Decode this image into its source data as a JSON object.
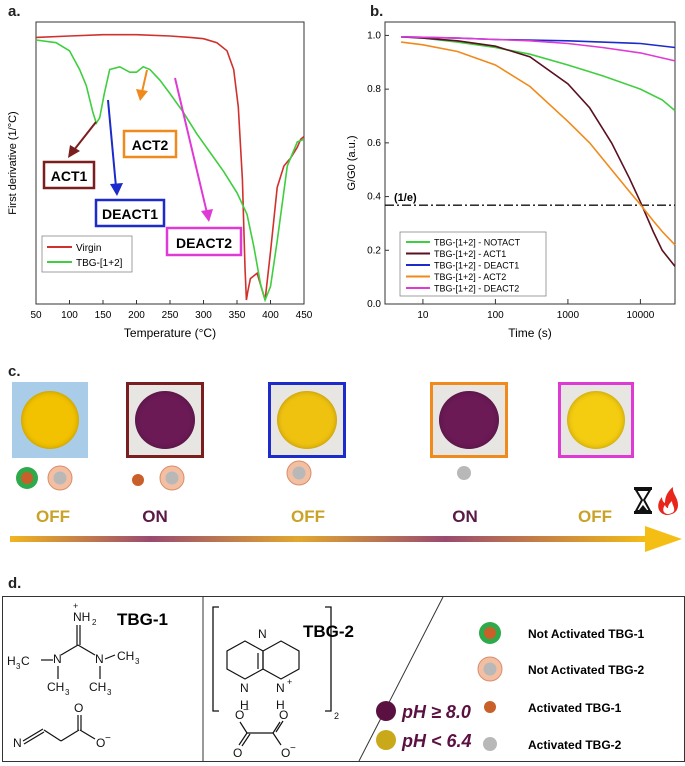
{
  "panels": {
    "a": "a.",
    "b": "b.",
    "c": "c.",
    "d": "d."
  },
  "chart_data": [
    {
      "id": "a",
      "type": "line",
      "title": "",
      "xlabel": "Temperature (°C)",
      "ylabel": "First derivative   (1/°C)",
      "xlim": [
        50,
        450
      ],
      "xticks": [
        "50",
        "100",
        "150",
        "200",
        "250",
        "300",
        "350",
        "400",
        "450"
      ],
      "series": [
        {
          "name": "Virgin",
          "color": "#d0312d",
          "x": [
            50,
            100,
            150,
            200,
            250,
            280,
            300,
            320,
            335,
            345,
            352,
            358,
            362,
            364,
            366,
            370,
            380,
            392,
            400,
            410,
            420,
            430,
            440,
            445,
            450
          ],
          "y": [
            0.98,
            0.985,
            0.99,
            0.99,
            0.985,
            0.98,
            0.975,
            0.96,
            0.93,
            0.86,
            0.72,
            0.45,
            0.12,
            0.0,
            0.03,
            0.08,
            0.1,
            0.0,
            0.18,
            0.42,
            0.5,
            0.53,
            0.57,
            0.6,
            0.61
          ]
        },
        {
          "name": "TBG-[1+2]",
          "color": "#3fce3f",
          "x": [
            50,
            80,
            100,
            115,
            125,
            135,
            140,
            145,
            152,
            160,
            175,
            190,
            200,
            210,
            220,
            235,
            250,
            270,
            290,
            310,
            330,
            350,
            365,
            375,
            385,
            392,
            400,
            410,
            425,
            440,
            450
          ],
          "y": [
            0.97,
            0.96,
            0.93,
            0.86,
            0.8,
            0.7,
            0.66,
            0.68,
            0.77,
            0.86,
            0.87,
            0.85,
            0.85,
            0.87,
            0.86,
            0.82,
            0.77,
            0.7,
            0.62,
            0.55,
            0.48,
            0.4,
            0.32,
            0.2,
            0.06,
            0.0,
            0.05,
            0.22,
            0.5,
            0.59,
            0.6
          ]
        }
      ],
      "annotations": [
        {
          "text": "ACT1",
          "color": "#7b1e1e"
        },
        {
          "text": "ACT2",
          "color": "#f08a1c"
        },
        {
          "text": "DEACT1",
          "color": "#1c2bc9"
        },
        {
          "text": "DEACT2",
          "color": "#e03ad6"
        }
      ]
    },
    {
      "id": "b",
      "type": "line",
      "title": "",
      "xlabel": "Time (s)",
      "ylabel": "G/G0 (a.u.)",
      "xscale": "log",
      "xlim": [
        3,
        30000
      ],
      "ylim": [
        0,
        1.05
      ],
      "xticks": [
        "10",
        "100",
        "1000",
        "10000"
      ],
      "yticks": [
        "0.0",
        "0.2",
        "0.4",
        "0.6",
        "0.8",
        "1.0"
      ],
      "reference_line": {
        "y": 0.368,
        "label": "(1/e)"
      },
      "series": [
        {
          "name": "TBG-[1+2] - NOTACT",
          "color": "#3fce3f",
          "x": [
            5,
            10,
            30,
            100,
            300,
            1000,
            3000,
            10000,
            20000,
            30000
          ],
          "y": [
            0.995,
            0.99,
            0.975,
            0.955,
            0.93,
            0.89,
            0.85,
            0.8,
            0.76,
            0.72
          ]
        },
        {
          "name": "TBG-[1+2] - ACT1",
          "color": "#5a1020",
          "x": [
            5,
            10,
            30,
            100,
            300,
            1000,
            2000,
            4000,
            7000,
            10000,
            15000,
            20000,
            30000
          ],
          "y": [
            0.995,
            0.99,
            0.98,
            0.96,
            0.92,
            0.82,
            0.73,
            0.6,
            0.47,
            0.38,
            0.27,
            0.2,
            0.14
          ]
        },
        {
          "name": "TBG-[1+2] - DEACT1",
          "color": "#1c2bc9",
          "x": [
            5,
            30,
            100,
            1000,
            10000,
            30000
          ],
          "y": [
            0.995,
            0.99,
            0.985,
            0.98,
            0.97,
            0.955
          ]
        },
        {
          "name": "TBG-[1+2] - ACT2",
          "color": "#f08a1c",
          "x": [
            5,
            10,
            30,
            100,
            300,
            1000,
            2000,
            4000,
            7000,
            10000,
            15000,
            20000,
            30000
          ],
          "y": [
            0.975,
            0.965,
            0.94,
            0.89,
            0.81,
            0.68,
            0.6,
            0.5,
            0.42,
            0.37,
            0.31,
            0.27,
            0.22
          ]
        },
        {
          "name": "TBG-[1+2] - DEACT2",
          "color": "#e03ad6",
          "x": [
            5,
            30,
            100,
            300,
            1000,
            3000,
            10000,
            30000
          ],
          "y": [
            0.995,
            0.99,
            0.985,
            0.98,
            0.97,
            0.955,
            0.935,
            0.905
          ]
        }
      ]
    }
  ],
  "panel_c": {
    "samples": [
      {
        "color": "#f2c200",
        "frame": "#a9cce9",
        "state": "OFF"
      },
      {
        "color": "#6b1a55",
        "frame": "#7b1e1e",
        "state": "ON"
      },
      {
        "color": "#f0c210",
        "frame": "#1c2bc9",
        "state": "OFF"
      },
      {
        "color": "#6b1a55",
        "frame": "#f08a1c",
        "state": "ON"
      },
      {
        "color": "#f4cc10",
        "frame": "#e03ad6",
        "state": "OFF"
      }
    ],
    "icons": [
      "hourglass-icon",
      "fire-icon"
    ],
    "colors": {
      "off": "#c9a227",
      "on": "#5a1a45"
    }
  },
  "panel_d": {
    "tbg1_label": "TBG-1",
    "tbg2_label": "TBG-2",
    "tbg1_cation": {
      "nh2": "NH",
      "nh2_sub": "2",
      "plus": "+",
      "h3c": "H",
      "h3c_sub": "3",
      "h3c_c": "C",
      "ch3": "CH",
      "ch3_sub": "3",
      "n": "N"
    },
    "tbg1_anion": {
      "n": "N",
      "o": "O",
      "o_minus": "O",
      "minus": "−"
    },
    "tbg2_cation": {
      "n": "N",
      "n_plus": "N",
      "plus": "+",
      "h": "H",
      "subscript": "2"
    },
    "tbg2_anion": {
      "o": "O",
      "minus": "−"
    },
    "ph_high": "pH ≥ 8.0",
    "ph_low": "pH < 6.4",
    "ph_colors": {
      "high": "#5a1041",
      "low": "#c9a81a"
    },
    "legend": [
      {
        "label": "Not Activated TBG-1"
      },
      {
        "label": "Not Activated TBG-2"
      },
      {
        "label": "Activated TBG-1"
      },
      {
        "label": "Activated TBG-2"
      }
    ]
  }
}
